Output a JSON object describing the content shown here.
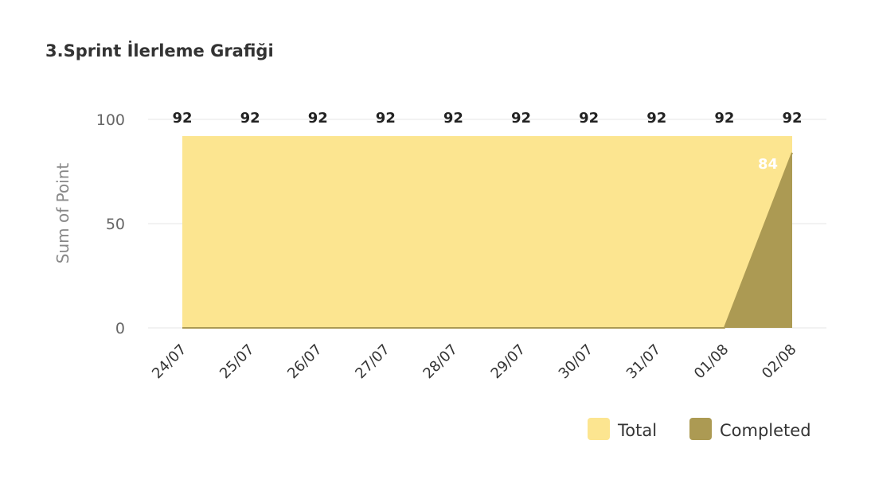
{
  "chart_data": {
    "type": "area",
    "title": "3.Sprint İlerleme Grafiği",
    "xlabel": "",
    "ylabel": "Sum of Point",
    "ylim": [
      0,
      100
    ],
    "yticks": [
      0,
      50,
      100
    ],
    "grid": true,
    "legend": "bottom-right",
    "categories": [
      "24/07",
      "25/07",
      "26/07",
      "27/07",
      "28/07",
      "29/07",
      "30/07",
      "31/07",
      "01/08",
      "02/08"
    ],
    "series": [
      {
        "name": "Total",
        "color": "#FCE590",
        "values": [
          92,
          92,
          92,
          92,
          92,
          92,
          92,
          92,
          92,
          92
        ],
        "data_labels": [
          "92",
          "92",
          "92",
          "92",
          "92",
          "92",
          "92",
          "92",
          "92",
          "92"
        ]
      },
      {
        "name": "Completed",
        "color": "#AC9A53",
        "values": [
          0,
          0,
          0,
          0,
          0,
          0,
          0,
          0,
          0,
          84
        ],
        "data_labels": [
          "84"
        ]
      }
    ]
  }
}
